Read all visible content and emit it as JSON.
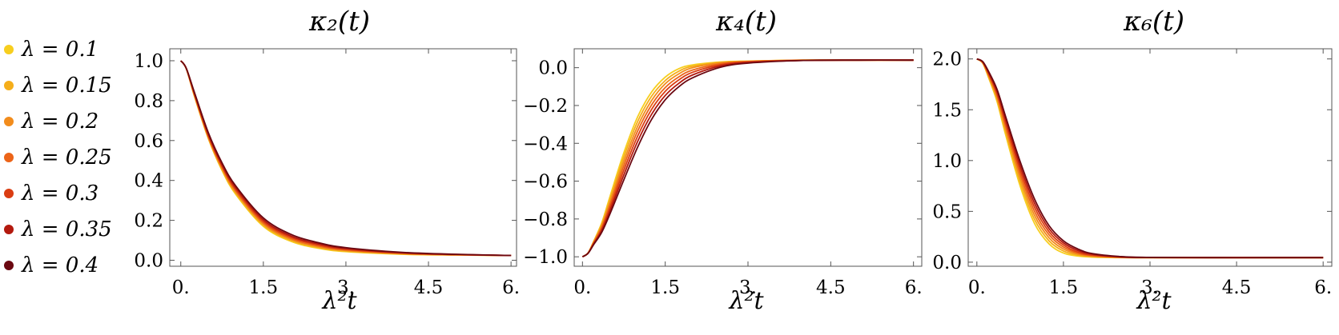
{
  "legend": [
    {
      "label": "λ = 0.1",
      "color": "#F7CE1E"
    },
    {
      "label": "λ = 0.15",
      "color": "#F5AE1A"
    },
    {
      "label": "λ = 0.2",
      "color": "#F28C1C"
    },
    {
      "label": "λ = 0.25",
      "color": "#EC6418"
    },
    {
      "label": "λ = 0.3",
      "color": "#DA3D12"
    },
    {
      "label": "λ = 0.35",
      "color": "#B3190E"
    },
    {
      "label": "λ = 0.4",
      "color": "#6B0811"
    }
  ],
  "chart_data": [
    {
      "type": "line",
      "title": "κ₂(t)",
      "xlabel": "λ²t",
      "ylabel": "",
      "xlim": [
        -0.2,
        6.1
      ],
      "ylim": [
        -0.03,
        1.06
      ],
      "xticks": [
        0,
        1.5,
        3,
        4.5,
        6
      ],
      "xtick_labels": [
        "0.",
        "1.5",
        "3.",
        "4.5",
        "6."
      ],
      "yticks": [
        0,
        0.2,
        0.4,
        0.6,
        0.8,
        1.0
      ],
      "ytick_labels": [
        "0.0",
        "0.2",
        "0.4",
        "0.6",
        "0.8",
        "1.0"
      ],
      "x": [
        0,
        0.1,
        0.25,
        0.5,
        0.75,
        1.0,
        1.5,
        2.0,
        2.5,
        3.0,
        4.0,
        5.0,
        6.0
      ],
      "series": [
        {
          "name": "λ = 0.1",
          "values": [
            1.0,
            0.96,
            0.82,
            0.61,
            0.45,
            0.33,
            0.17,
            0.095,
            0.06,
            0.043,
            0.03,
            0.026,
            0.024
          ]
        },
        {
          "name": "λ = 0.15",
          "values": [
            1.0,
            0.96,
            0.822,
            0.613,
            0.455,
            0.336,
            0.176,
            0.1,
            0.064,
            0.046,
            0.032,
            0.027,
            0.024
          ]
        },
        {
          "name": "λ = 0.2",
          "values": [
            1.0,
            0.96,
            0.825,
            0.617,
            0.46,
            0.342,
            0.182,
            0.105,
            0.068,
            0.049,
            0.033,
            0.027,
            0.024
          ]
        },
        {
          "name": "λ = 0.25",
          "values": [
            1.0,
            0.961,
            0.828,
            0.621,
            0.466,
            0.348,
            0.188,
            0.11,
            0.072,
            0.052,
            0.035,
            0.028,
            0.024
          ]
        },
        {
          "name": "λ = 0.3",
          "values": [
            1.0,
            0.961,
            0.831,
            0.626,
            0.472,
            0.355,
            0.195,
            0.116,
            0.077,
            0.055,
            0.036,
            0.028,
            0.024
          ]
        },
        {
          "name": "λ = 0.35",
          "values": [
            1.0,
            0.962,
            0.835,
            0.632,
            0.479,
            0.363,
            0.203,
            0.122,
            0.082,
            0.059,
            0.038,
            0.029,
            0.024
          ]
        },
        {
          "name": "λ = 0.4",
          "values": [
            1.0,
            0.962,
            0.84,
            0.64,
            0.488,
            0.372,
            0.212,
            0.13,
            0.088,
            0.063,
            0.04,
            0.03,
            0.024
          ]
        }
      ]
    },
    {
      "type": "line",
      "title": "κ₄(t)",
      "xlabel": "λ²t",
      "ylabel": "",
      "xlim": [
        -0.15,
        6.15
      ],
      "ylim": [
        -1.05,
        0.1
      ],
      "xticks": [
        0,
        1.5,
        3,
        4.5,
        6
      ],
      "xtick_labels": [
        "0.",
        "1.5",
        "3.",
        "4.5",
        "6."
      ],
      "yticks": [
        -1.0,
        -0.8,
        -0.6,
        -0.4,
        -0.2,
        0.0
      ],
      "ytick_labels": [
        "−1.0",
        "−0.8",
        "−0.6",
        "−0.4",
        "−0.2",
        "0.0"
      ],
      "x": [
        0,
        0.1,
        0.2,
        0.35,
        0.5,
        0.75,
        1.0,
        1.25,
        1.5,
        1.75,
        2.0,
        2.5,
        3.0,
        4.0,
        5.0,
        6.0
      ],
      "series": [
        {
          "name": "λ = 0.1",
          "values": [
            -1.0,
            -0.98,
            -0.92,
            -0.82,
            -0.68,
            -0.45,
            -0.26,
            -0.13,
            -0.05,
            -0.005,
            0.015,
            0.03,
            0.035,
            0.04,
            0.04,
            0.04
          ]
        },
        {
          "name": "λ = 0.15",
          "values": [
            -1.0,
            -0.98,
            -0.922,
            -0.828,
            -0.695,
            -0.472,
            -0.285,
            -0.152,
            -0.068,
            -0.018,
            0.008,
            0.028,
            0.034,
            0.04,
            0.04,
            0.04
          ]
        },
        {
          "name": "λ = 0.2",
          "values": [
            -1.0,
            -0.98,
            -0.925,
            -0.836,
            -0.71,
            -0.495,
            -0.31,
            -0.175,
            -0.085,
            -0.032,
            0.0,
            0.025,
            0.033,
            0.039,
            0.04,
            0.04
          ]
        },
        {
          "name": "λ = 0.25",
          "values": [
            -1.0,
            -0.981,
            -0.928,
            -0.845,
            -0.725,
            -0.518,
            -0.335,
            -0.198,
            -0.105,
            -0.048,
            -0.012,
            0.02,
            0.032,
            0.039,
            0.04,
            0.04
          ]
        },
        {
          "name": "λ = 0.3",
          "values": [
            -1.0,
            -0.981,
            -0.931,
            -0.853,
            -0.74,
            -0.542,
            -0.362,
            -0.222,
            -0.125,
            -0.064,
            -0.024,
            0.015,
            0.03,
            0.039,
            0.04,
            0.04
          ]
        },
        {
          "name": "λ = 0.35",
          "values": [
            -1.0,
            -0.982,
            -0.934,
            -0.862,
            -0.756,
            -0.567,
            -0.39,
            -0.248,
            -0.147,
            -0.082,
            -0.038,
            0.009,
            0.027,
            0.038,
            0.04,
            0.04
          ]
        },
        {
          "name": "λ = 0.4",
          "values": [
            -1.0,
            -0.982,
            -0.937,
            -0.87,
            -0.772,
            -0.593,
            -0.42,
            -0.275,
            -0.17,
            -0.1,
            -0.053,
            0.002,
            0.024,
            0.038,
            0.04,
            0.04
          ]
        }
      ]
    },
    {
      "type": "line",
      "title": "κ₆(t)",
      "xlabel": "λ²t",
      "ylabel": "",
      "xlim": [
        -0.15,
        6.15
      ],
      "ylim": [
        -0.04,
        2.1
      ],
      "xticks": [
        0,
        1.5,
        3,
        4.5,
        6
      ],
      "xtick_labels": [
        "0.",
        "1.5",
        "3.",
        "4.5",
        "6."
      ],
      "yticks": [
        0,
        0.5,
        1.0,
        1.5,
        2.0
      ],
      "ytick_labels": [
        "0.0",
        "0.5",
        "1.0",
        "1.5",
        "2.0"
      ],
      "x": [
        0,
        0.1,
        0.2,
        0.35,
        0.5,
        0.75,
        1.0,
        1.25,
        1.5,
        1.75,
        2.0,
        2.5,
        3.0,
        4.0,
        5.0,
        6.0
      ],
      "series": [
        {
          "name": "λ = 0.1",
          "values": [
            2.0,
            1.96,
            1.82,
            1.58,
            1.25,
            0.75,
            0.38,
            0.18,
            0.09,
            0.06,
            0.05,
            0.045,
            0.045,
            0.045,
            0.045,
            0.045
          ]
        },
        {
          "name": "λ = 0.15",
          "values": [
            2.0,
            1.96,
            1.83,
            1.6,
            1.28,
            0.79,
            0.42,
            0.21,
            0.11,
            0.07,
            0.055,
            0.046,
            0.045,
            0.045,
            0.045,
            0.045
          ]
        },
        {
          "name": "λ = 0.2",
          "values": [
            2.0,
            1.965,
            1.84,
            1.62,
            1.31,
            0.83,
            0.46,
            0.24,
            0.13,
            0.08,
            0.06,
            0.047,
            0.045,
            0.045,
            0.045,
            0.045
          ]
        },
        {
          "name": "λ = 0.25",
          "values": [
            2.0,
            1.967,
            1.85,
            1.64,
            1.34,
            0.87,
            0.5,
            0.27,
            0.15,
            0.09,
            0.065,
            0.048,
            0.045,
            0.045,
            0.045,
            0.045
          ]
        },
        {
          "name": "λ = 0.3",
          "values": [
            2.0,
            1.97,
            1.86,
            1.66,
            1.37,
            0.91,
            0.54,
            0.3,
            0.17,
            0.1,
            0.07,
            0.05,
            0.046,
            0.045,
            0.045,
            0.045
          ]
        },
        {
          "name": "λ = 0.35",
          "values": [
            2.0,
            1.972,
            1.87,
            1.68,
            1.4,
            0.95,
            0.58,
            0.33,
            0.19,
            0.115,
            0.078,
            0.052,
            0.046,
            0.045,
            0.045,
            0.045
          ]
        },
        {
          "name": "λ = 0.4",
          "values": [
            2.0,
            1.975,
            1.88,
            1.7,
            1.43,
            0.99,
            0.62,
            0.36,
            0.21,
            0.13,
            0.085,
            0.055,
            0.047,
            0.045,
            0.045,
            0.045
          ]
        }
      ]
    }
  ]
}
